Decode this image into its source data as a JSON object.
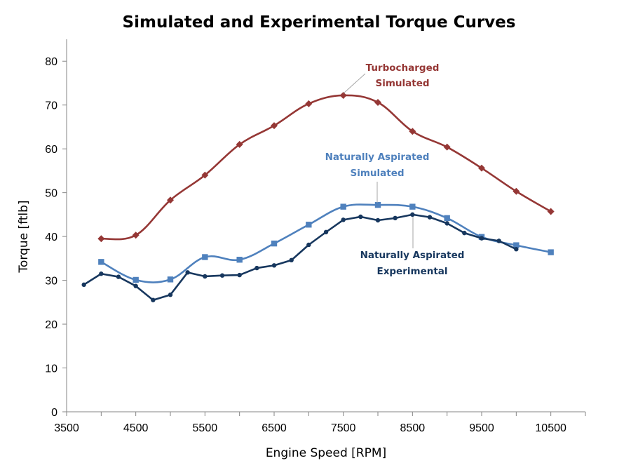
{
  "chart_data": {
    "type": "line",
    "title": "Simulated and Experimental Torque Curves",
    "xlabel": "Engine Speed [RPM]",
    "ylabel": "Torque [ftlb]",
    "xlim": [
      3500,
      11000
    ],
    "ylim": [
      0,
      85
    ],
    "x_ticks": [
      3500,
      4500,
      5500,
      6500,
      7500,
      8500,
      9500,
      10500
    ],
    "y_ticks": [
      0,
      10,
      20,
      30,
      40,
      50,
      60,
      70,
      80
    ],
    "grid": false,
    "legend": "none",
    "series": [
      {
        "name": "Turbocharged Simulated",
        "label_lines": [
          "Turbocharged",
          "Simulated"
        ],
        "color": "#953735",
        "marker": "diamond",
        "smooth": true,
        "x": [
          4000,
          4500,
          5000,
          5500,
          6000,
          6500,
          7000,
          7500,
          8000,
          8500,
          9000,
          9500,
          10000,
          10500
        ],
        "y": [
          39.5,
          40.3,
          48.3,
          54.0,
          61.0,
          65.3,
          70.3,
          72.2,
          70.6,
          64.0,
          60.4,
          55.6,
          50.3,
          45.7
        ]
      },
      {
        "name": "Naturally Aspirated Simulated",
        "label_lines": [
          "Naturally Aspirated",
          "Simulated"
        ],
        "color": "#4f81bd",
        "marker": "square",
        "smooth": true,
        "x": [
          4000,
          4500,
          5000,
          5500,
          6000,
          6500,
          7000,
          7500,
          8000,
          8500,
          9000,
          9500,
          10000,
          10500
        ],
        "y": [
          34.2,
          30.1,
          30.2,
          35.3,
          34.7,
          38.4,
          42.7,
          46.8,
          47.2,
          46.8,
          44.2,
          39.9,
          38.0,
          36.4
        ]
      },
      {
        "name": "Naturally Aspirated Experimental",
        "label_lines": [
          "Naturally Aspirated",
          "Experimental"
        ],
        "color": "#17375e",
        "marker": "circle",
        "smooth": false,
        "x": [
          3750,
          4000,
          4250,
          4500,
          4750,
          5000,
          5250,
          5500,
          5750,
          6000,
          6250,
          6500,
          6750,
          7000,
          7250,
          7500,
          7750,
          8000,
          8250,
          8500,
          8750,
          9000,
          9250,
          9500,
          9750,
          10000
        ],
        "y": [
          29.0,
          31.5,
          30.8,
          28.7,
          25.5,
          26.7,
          31.8,
          30.9,
          31.1,
          31.2,
          32.8,
          33.4,
          34.6,
          38.1,
          41.0,
          43.8,
          44.5,
          43.7,
          44.2,
          45.0,
          44.4,
          43.0,
          40.8,
          39.6,
          39.0,
          37.1
        ]
      }
    ]
  }
}
